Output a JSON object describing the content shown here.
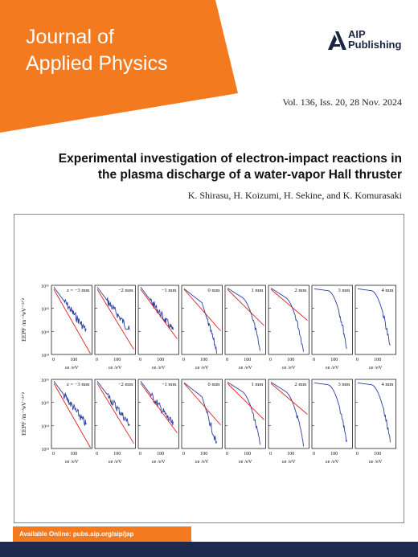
{
  "journal": {
    "title_line1": "Journal of",
    "title_line2": "Applied Physics"
  },
  "publisher": {
    "line1": "AIP",
    "line2": "Publishing"
  },
  "issue": "Vol. 136, Iss. 20, 28 Nov. 2024",
  "article": {
    "title_line1": "Experimental investigation of electron-impact reactions in",
    "title_line2": "the plasma discharge of a water-vapor Hall thruster",
    "authors": "K. Shirasu, H. Koizumi, H. Sekine, and K. Komurasaki"
  },
  "footer": {
    "available": "Available Online: pubs.aip.org/aip/jap"
  },
  "colors": {
    "orange": "#f47a20",
    "navy": "#1d2a4d",
    "curve": "#2b3fa0",
    "fit": "#e02020"
  },
  "figure": {
    "ylabel": "EEPF /m⁻³eV⁻³ᐟ²",
    "xlabel": "εe /eV",
    "ytick_labels": [
      "10¹⁶",
      "10¹⁵",
      "10¹⁴",
      "10¹³"
    ],
    "xtick_labels": [
      "0",
      "100"
    ],
    "panel_labels": [
      "z = −3 mm",
      "−2 mm",
      "−1 mm",
      "0 mm",
      "1 mm",
      "2 mm",
      "3 mm",
      "4 mm"
    ]
  },
  "chart_data": [
    {
      "type": "line",
      "title": "",
      "ylabel": "EEPF /m^-3 eV^-3/2",
      "xlabel": "εe /eV",
      "scale": "log",
      "panels": [
        "z = −3 mm",
        "−2 mm",
        "−1 mm",
        "0 mm",
        "1 mm",
        "2 mm",
        "3 mm",
        "4 mm"
      ],
      "xlim": [
        0,
        170
      ],
      "ylim": [
        10000000000000.0,
        1e+16
      ]
    },
    {
      "type": "line",
      "title": "",
      "ylabel": "EEPF /m^-3 eV^-3/2",
      "xlabel": "εe /eV",
      "scale": "log",
      "panels": [
        "z = −3 mm",
        "−2 mm",
        "−1 mm",
        "0 mm",
        "1 mm",
        "2 mm",
        "3 mm",
        "4 mm"
      ],
      "xlim": [
        0,
        170
      ],
      "ylim": [
        10000000000000.0,
        1e+16
      ]
    }
  ]
}
